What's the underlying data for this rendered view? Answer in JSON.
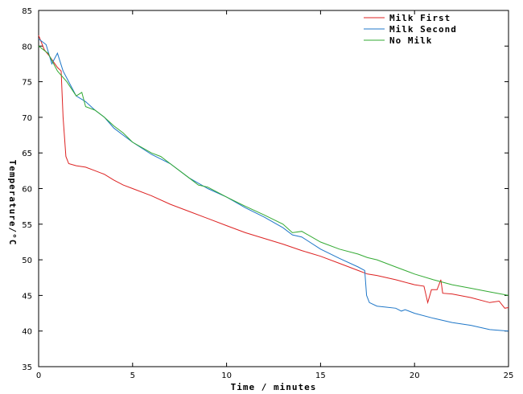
{
  "chart_data": {
    "type": "line",
    "title": "",
    "xlabel": "Time / minutes",
    "ylabel": "Temperature/°C",
    "xlim": [
      0,
      25
    ],
    "ylim": [
      35,
      85
    ],
    "xticks": [
      "0",
      "5",
      "10",
      "15",
      "20",
      "25"
    ],
    "yticks": [
      "35",
      "40",
      "45",
      "50",
      "55",
      "60",
      "65",
      "70",
      "75",
      "80",
      "85"
    ],
    "grid": false,
    "legend_position": "top-right",
    "series": [
      {
        "name": "Milk First",
        "color": "#dd2222",
        "x": [
          0,
          0.3,
          0.6,
          1.0,
          1.2,
          1.3,
          1.45,
          1.6,
          2.0,
          2.5,
          3.0,
          3.5,
          4.0,
          4.5,
          5.0,
          6.0,
          7.0,
          8.0,
          9.0,
          10.0,
          11.0,
          12.0,
          13.0,
          14.0,
          15.0,
          16.0,
          17.0,
          17.5,
          18.0,
          19.0,
          20.0,
          20.5,
          20.7,
          20.9,
          21.2,
          21.4,
          21.5,
          22.0,
          23.0,
          24.0,
          24.5,
          24.8,
          25.0
        ],
        "y": [
          81.5,
          79.5,
          78.5,
          77.0,
          76.5,
          70.0,
          64.5,
          63.5,
          63.2,
          63.0,
          62.5,
          62.0,
          61.2,
          60.5,
          60.0,
          59.0,
          57.8,
          56.8,
          55.8,
          54.8,
          53.8,
          53.0,
          52.2,
          51.3,
          50.5,
          49.5,
          48.5,
          48.0,
          47.8,
          47.2,
          46.5,
          46.3,
          44.0,
          45.8,
          45.8,
          47.2,
          45.3,
          45.2,
          44.7,
          44.0,
          44.2,
          43.2,
          43.3
        ]
      },
      {
        "name": "Milk Second",
        "color": "#1f77c8",
        "x": [
          0,
          0.4,
          0.7,
          1.0,
          1.3,
          1.6,
          2.0,
          2.5,
          3.0,
          3.5,
          4.0,
          4.5,
          5.0,
          6.0,
          7.0,
          8.0,
          9.0,
          10.0,
          11.0,
          12.0,
          13.0,
          13.5,
          14.0,
          15.0,
          16.0,
          17.0,
          17.35,
          17.45,
          17.6,
          18.0,
          19.0,
          19.3,
          19.5,
          20.0,
          21.0,
          22.0,
          23.0,
          24.0,
          25.0
        ],
        "y": [
          81.0,
          80.2,
          77.5,
          79.0,
          76.5,
          75.0,
          73.0,
          72.2,
          71.0,
          70.0,
          68.5,
          67.5,
          66.5,
          64.8,
          63.5,
          61.5,
          60.0,
          58.8,
          57.3,
          56.0,
          54.5,
          53.5,
          53.2,
          51.5,
          50.2,
          49.0,
          48.5,
          45.0,
          44.0,
          43.5,
          43.2,
          42.8,
          43.0,
          42.5,
          41.8,
          41.2,
          40.8,
          40.2,
          40.0
        ]
      },
      {
        "name": "No Milk",
        "color": "#33aa33",
        "x": [
          0,
          0.5,
          1.0,
          1.5,
          2.0,
          2.3,
          2.5,
          3.0,
          3.5,
          4.0,
          4.5,
          5.0,
          6.0,
          6.5,
          7.0,
          8.0,
          8.5,
          9.0,
          10.0,
          11.0,
          12.0,
          13.0,
          13.5,
          14.0,
          15.0,
          16.0,
          17.0,
          17.5,
          18.0,
          19.0,
          20.0,
          21.0,
          22.0,
          23.0,
          24.0,
          25.0
        ],
        "y": [
          80.0,
          79.0,
          76.5,
          75.0,
          73.0,
          73.5,
          71.5,
          71.0,
          70.0,
          68.8,
          67.8,
          66.5,
          65.0,
          64.5,
          63.5,
          61.5,
          60.5,
          60.2,
          58.8,
          57.5,
          56.3,
          55.0,
          53.8,
          54.0,
          52.5,
          51.5,
          50.8,
          50.3,
          50.0,
          49.0,
          48.0,
          47.2,
          46.5,
          46.0,
          45.5,
          45.0
        ]
      }
    ]
  }
}
